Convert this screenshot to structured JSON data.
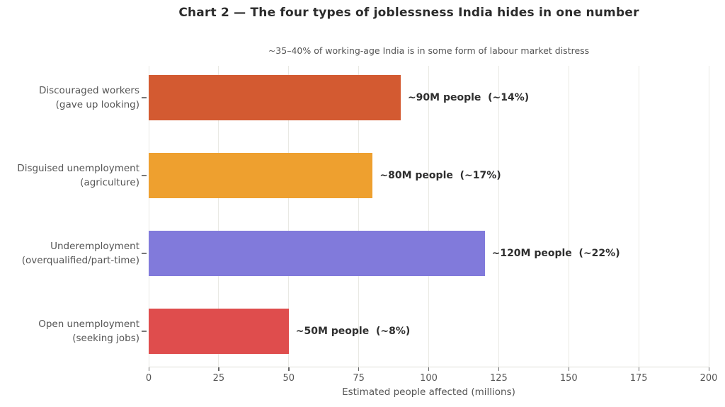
{
  "chart_data": {
    "type": "bar",
    "orientation": "horizontal",
    "title": "Chart 2 — The four types of joblessness India hides in one number",
    "subtitle": "~35–40% of working-age India is in some form of labour market distress",
    "xlabel": "Estimated people affected (millions)",
    "xlim": [
      0,
      200
    ],
    "xticks": [
      0,
      25,
      50,
      75,
      100,
      125,
      150,
      175,
      200
    ],
    "grid": true,
    "legend": false,
    "categories": [
      [
        "Discouraged workers",
        "(gave up looking)"
      ],
      [
        "Disguised unemployment",
        "(agriculture)"
      ],
      [
        "Underemployment",
        "(overqualified/part-time)"
      ],
      [
        "Open unemployment",
        "(seeking jobs)"
      ]
    ],
    "values": [
      90,
      80,
      120,
      50
    ],
    "bar_labels": [
      "~90M people  (~14%)",
      "~80M people  (~17%)",
      "~120M people  (~22%)",
      "~50M people  (~8%)"
    ],
    "bar_colors": [
      "#d35a31",
      "#eea02f",
      "#817adb",
      "#df4d4d"
    ]
  },
  "colors": {
    "background": "#ffffff",
    "grid": "#e9e9e4",
    "axis_line": "#dcdcd6",
    "tick": "#666666",
    "tick_label": "#555555",
    "category_label": "#555555",
    "value_label": "#2e2e2e",
    "title": "#2b2b2b",
    "subtitle": "#555555"
  }
}
